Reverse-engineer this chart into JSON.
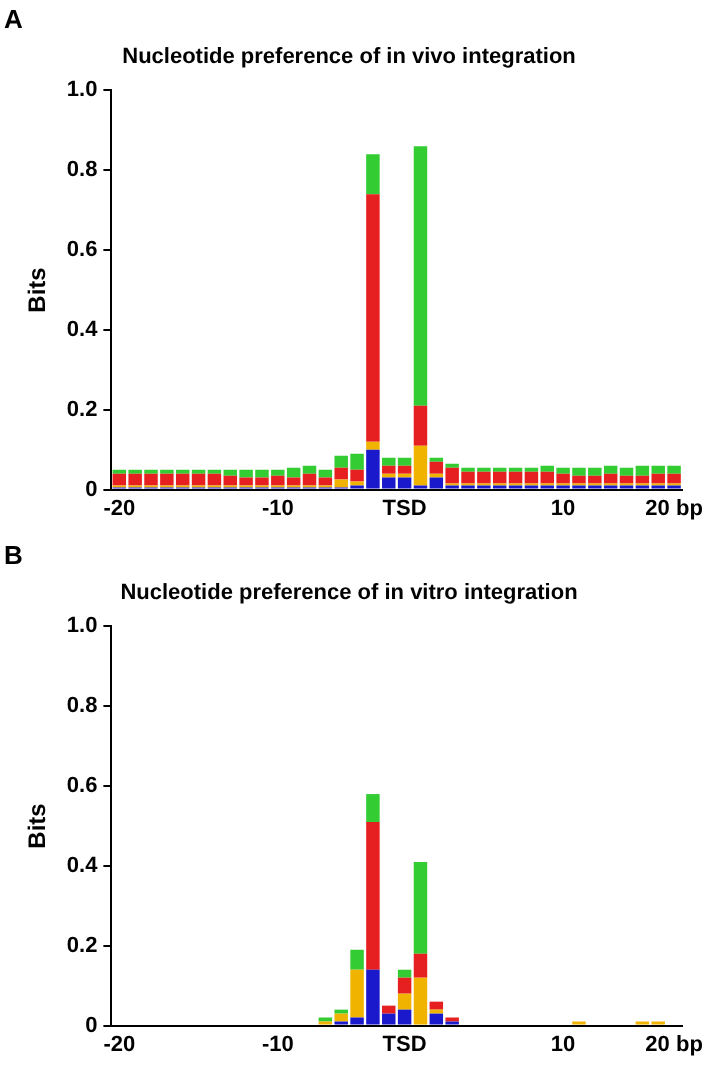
{
  "chart_data": [
    {
      "type": "bar",
      "title": "Nucleotide preference of in vivo integration",
      "ylabel": "Bits",
      "annotations": [
        "A"
      ],
      "stacked": true,
      "grid": false,
      "legend": false,
      "categories": [
        "-20",
        null,
        null,
        null,
        null,
        null,
        null,
        null,
        null,
        null,
        "-10",
        null,
        null,
        null,
        null,
        null,
        null,
        null,
        "TSD",
        null,
        null,
        null,
        null,
        null,
        null,
        null,
        null,
        null,
        "10",
        null,
        null,
        null,
        null,
        null,
        null,
        "20 bp"
      ],
      "ylim": [
        0,
        1
      ],
      "yticks": [
        0,
        0.2,
        0.4,
        0.6,
        0.8,
        {
          "value": 1,
          "label": "1.0"
        }
      ],
      "series": [
        {
          "color": "#1a1acc",
          "values": [
            0.005,
            0.005,
            0.005,
            0.005,
            0.005,
            0.005,
            0.005,
            0.005,
            0.005,
            0.005,
            0.005,
            0.005,
            0.005,
            0.005,
            0.005,
            0.01,
            0.1,
            0.03,
            0.03,
            0.01,
            0.03,
            0.01,
            0.01,
            0.01,
            0.01,
            0.01,
            0.01,
            0.01,
            0.01,
            0.01,
            0.01,
            0.01,
            0.01,
            0.01,
            0.01,
            0.01
          ]
        },
        {
          "color": "#f0b400",
          "values": [
            0.005,
            0.005,
            0.005,
            0.005,
            0.005,
            0.005,
            0.005,
            0.005,
            0.005,
            0.005,
            0.005,
            0.005,
            0.005,
            0.005,
            0.02,
            0.01,
            0.02,
            0.01,
            0.01,
            0.1,
            0.01,
            0.005,
            0.005,
            0.005,
            0.005,
            0.005,
            0.005,
            0.005,
            0.005,
            0.005,
            0.005,
            0.005,
            0.005,
            0.005,
            0.005,
            0.005
          ]
        },
        {
          "color": "#e62020",
          "values": [
            0.03,
            0.03,
            0.03,
            0.03,
            0.03,
            0.03,
            0.03,
            0.025,
            0.02,
            0.02,
            0.025,
            0.02,
            0.03,
            0.02,
            0.03,
            0.03,
            0.62,
            0.02,
            0.02,
            0.1,
            0.03,
            0.04,
            0.03,
            0.03,
            0.03,
            0.03,
            0.03,
            0.03,
            0.025,
            0.02,
            0.02,
            0.025,
            0.02,
            0.02,
            0.025,
            0.025
          ]
        },
        {
          "color": "#33cc33",
          "values": [
            0.01,
            0.01,
            0.01,
            0.01,
            0.01,
            0.01,
            0.01,
            0.015,
            0.02,
            0.02,
            0.015,
            0.025,
            0.02,
            0.02,
            0.03,
            0.04,
            0.1,
            0.02,
            0.02,
            0.65,
            0.01,
            0.01,
            0.01,
            0.01,
            0.01,
            0.01,
            0.01,
            0.015,
            0.015,
            0.02,
            0.02,
            0.02,
            0.02,
            0.025,
            0.02,
            0.02
          ]
        }
      ]
    },
    {
      "type": "bar",
      "title": "Nucleotide preference of in vitro integration",
      "ylabel": "Bits",
      "annotations": [
        "B"
      ],
      "stacked": true,
      "grid": false,
      "legend": false,
      "categories": [
        "-20",
        null,
        null,
        null,
        null,
        null,
        null,
        null,
        null,
        null,
        "-10",
        null,
        null,
        null,
        null,
        null,
        null,
        null,
        "TSD",
        null,
        null,
        null,
        null,
        null,
        null,
        null,
        null,
        null,
        "10",
        null,
        null,
        null,
        null,
        null,
        null,
        "20 bp"
      ],
      "ylim": [
        0,
        1
      ],
      "yticks": [
        0,
        0.2,
        0.4,
        0.6,
        0.8,
        {
          "value": 1,
          "label": "1.0"
        }
      ],
      "series": [
        {
          "color": "#1a1acc",
          "values": [
            0,
            0,
            0,
            0,
            0,
            0,
            0,
            0,
            0,
            0,
            0,
            0,
            0,
            0,
            0.01,
            0.02,
            0.14,
            0.03,
            0.04,
            0,
            0.03,
            0.01,
            0,
            0,
            0,
            0,
            0,
            0,
            0,
            0,
            0,
            0,
            0,
            0,
            0,
            0
          ]
        },
        {
          "color": "#f0b400",
          "values": [
            0,
            0,
            0,
            0,
            0,
            0,
            0,
            0,
            0,
            0,
            0,
            0,
            0,
            0.01,
            0.02,
            0.12,
            0,
            0,
            0.04,
            0.12,
            0.01,
            0,
            0,
            0,
            0,
            0,
            0,
            0,
            0,
            0.01,
            0,
            0,
            0,
            0.01,
            0.01,
            0
          ]
        },
        {
          "color": "#e62020",
          "values": [
            0,
            0,
            0,
            0,
            0,
            0,
            0,
            0,
            0,
            0,
            0,
            0,
            0,
            0,
            0,
            0,
            0.37,
            0.02,
            0.04,
            0.06,
            0.02,
            0.01,
            0,
            0,
            0,
            0,
            0,
            0,
            0,
            0,
            0,
            0,
            0,
            0,
            0,
            0
          ]
        },
        {
          "color": "#33cc33",
          "values": [
            0,
            0,
            0,
            0,
            0,
            0,
            0,
            0,
            0,
            0,
            0,
            0,
            0,
            0.01,
            0.01,
            0.05,
            0.07,
            0,
            0.02,
            0.23,
            0,
            0,
            0,
            0,
            0,
            0,
            0,
            0,
            0,
            0,
            0,
            0,
            0,
            0,
            0,
            0
          ]
        }
      ]
    }
  ]
}
